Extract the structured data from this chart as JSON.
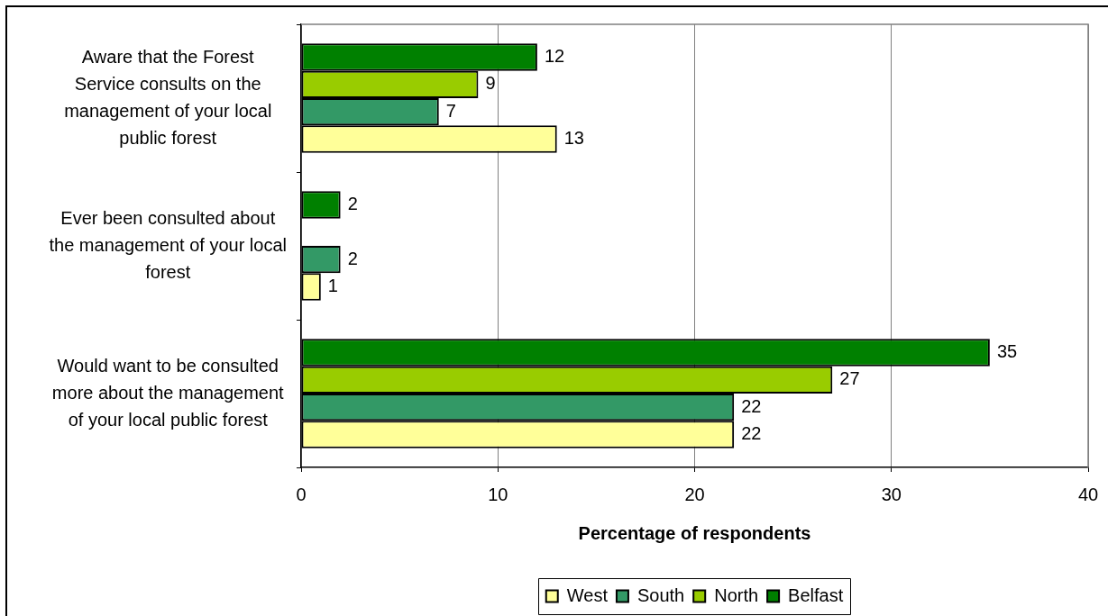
{
  "chart_data": {
    "type": "bar",
    "orientation": "horizontal",
    "xlabel": "Percentage of respondents",
    "categories": [
      "Aware that the Forest\nService consults on the\nmanagement of your local\npublic forest",
      "Ever been consulted about\nthe management of your local\nforest",
      "Would want to be consulted\nmore about the management\nof your local public forest"
    ],
    "series": [
      {
        "name": "West",
        "color": "#ffff99",
        "values": [
          13,
          1,
          22
        ]
      },
      {
        "name": "South",
        "color": "#339966",
        "values": [
          7,
          2,
          22
        ]
      },
      {
        "name": "North",
        "color": "#99cc00",
        "values": [
          9,
          null,
          27
        ]
      },
      {
        "name": "Belfast",
        "color": "#008000",
        "values": [
          12,
          2,
          35
        ]
      }
    ],
    "xlim": [
      0,
      40
    ],
    "xticks": [
      0,
      10,
      20,
      30,
      40
    ],
    "grid": "x",
    "legend": "bottom",
    "data_labels": true
  }
}
